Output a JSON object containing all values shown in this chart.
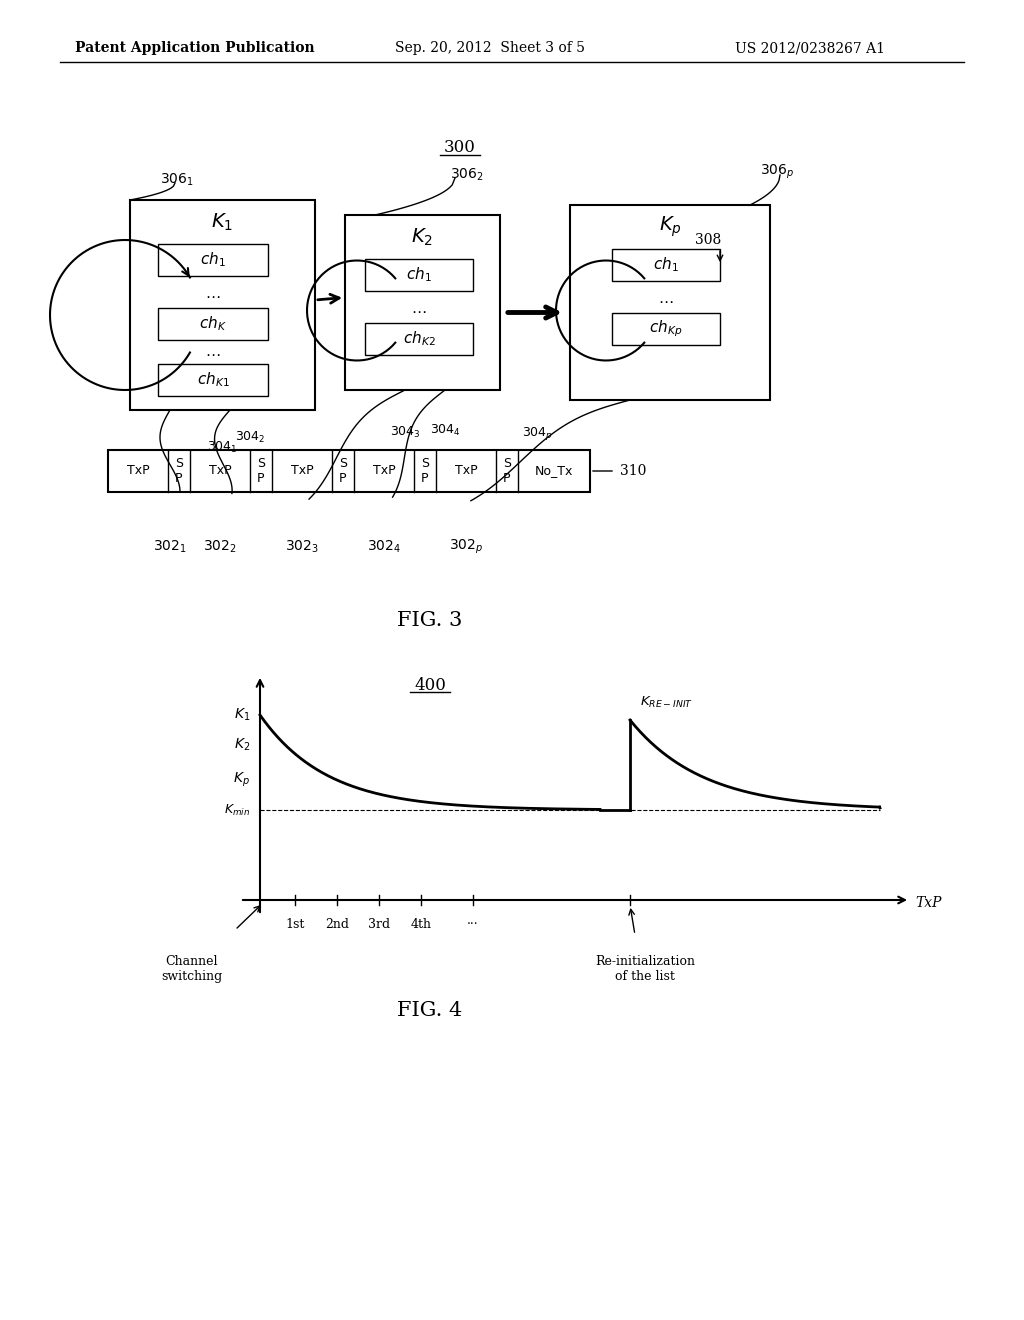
{
  "bg_color": "#ffffff",
  "fig_width": 10.24,
  "fig_height": 13.2,
  "header_left": "Patent Application Publication",
  "header_mid": "Sep. 20, 2012  Sheet 3 of 5",
  "header_right": "US 2012/0238267 A1"
}
